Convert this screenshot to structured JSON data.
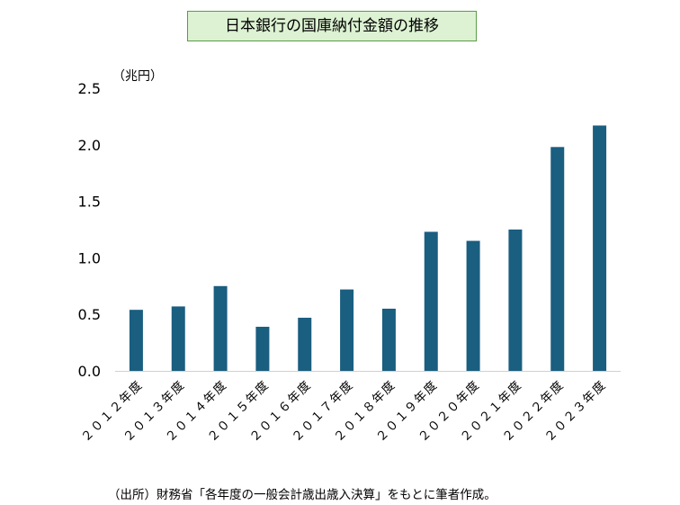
{
  "chart_data": {
    "type": "bar",
    "title": "日本銀行の国庫納付金額の推移",
    "unit_label": "（兆円）",
    "source_note": "（出所）財務省「各年度の一般会計歳出歳入決算」をもとに筆者作成。",
    "categories": [
      "２０１２年度",
      "２０１３年度",
      "２０１４年度",
      "２０１５年度",
      "２０１６年度",
      "２０１７年度",
      "２０１８年度",
      "２０１９年度",
      "２０２０年度",
      "２０２１年度",
      "２０２２年度",
      "２０２３年度"
    ],
    "values": [
      0.54,
      0.57,
      0.75,
      0.39,
      0.47,
      0.72,
      0.55,
      1.23,
      1.15,
      1.25,
      1.98,
      2.17
    ],
    "yticks": [
      "0.0",
      "0.5",
      "1.0",
      "1.5",
      "2.0",
      "2.5"
    ],
    "ylim": [
      0,
      2.5
    ],
    "grid": false,
    "bar_color": "#1a5e80"
  }
}
